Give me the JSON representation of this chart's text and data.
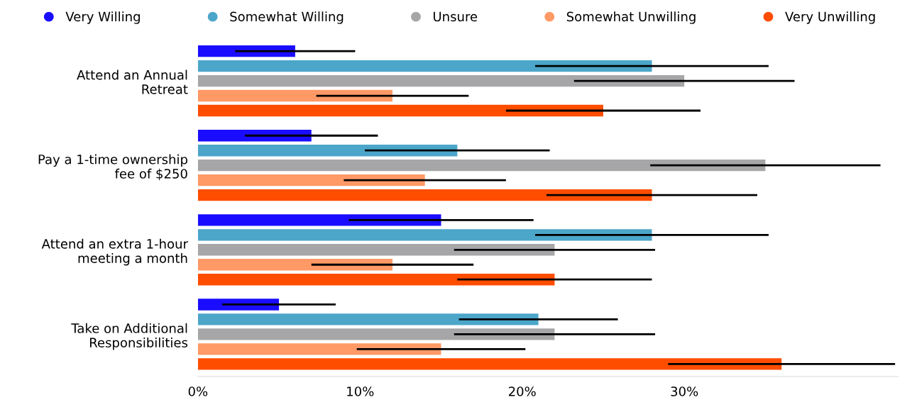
{
  "chart_data": {
    "type": "bar",
    "orientation": "horizontal",
    "categories": [
      "Attend an Annual\nRetreat",
      "Pay a 1-time ownership\nfee of $250",
      "Attend an extra 1-hour\nmeeting a month",
      "Take on Additional\nResponsibilities"
    ],
    "series": [
      {
        "name": "Very Willing",
        "color": "#1a0dff",
        "values": [
          6,
          7,
          15,
          5
        ],
        "errors": [
          3.7,
          4.1,
          5.7,
          3.5
        ]
      },
      {
        "name": "Somewhat Willing",
        "color": "#4ba6c9",
        "values": [
          28,
          16,
          28,
          21
        ],
        "errors": [
          7.2,
          5.7,
          7.2,
          4.9
        ]
      },
      {
        "name": "Unsure",
        "color": "#a6a6a8",
        "values": [
          30,
          35,
          22,
          22
        ],
        "errors": [
          6.8,
          7.1,
          6.2,
          6.2
        ]
      },
      {
        "name": "Somewhat Unwilling",
        "color": "#ff9966",
        "values": [
          12,
          14,
          12,
          15
        ],
        "errors": [
          4.7,
          5.0,
          5.0,
          5.2
        ]
      },
      {
        "name": "Very Unwilling",
        "color": "#ff4d00",
        "values": [
          25,
          28,
          22,
          36
        ],
        "errors": [
          6.0,
          6.5,
          6.0,
          7.0
        ]
      }
    ],
    "xlim": [
      0,
      43.2
    ],
    "xticks": [
      {
        "value": 0,
        "label": "0%"
      },
      {
        "value": 10,
        "label": "10%"
      },
      {
        "value": 20,
        "label": "20%"
      },
      {
        "value": 30,
        "label": "30%"
      }
    ],
    "legend": "top",
    "grid": false
  }
}
